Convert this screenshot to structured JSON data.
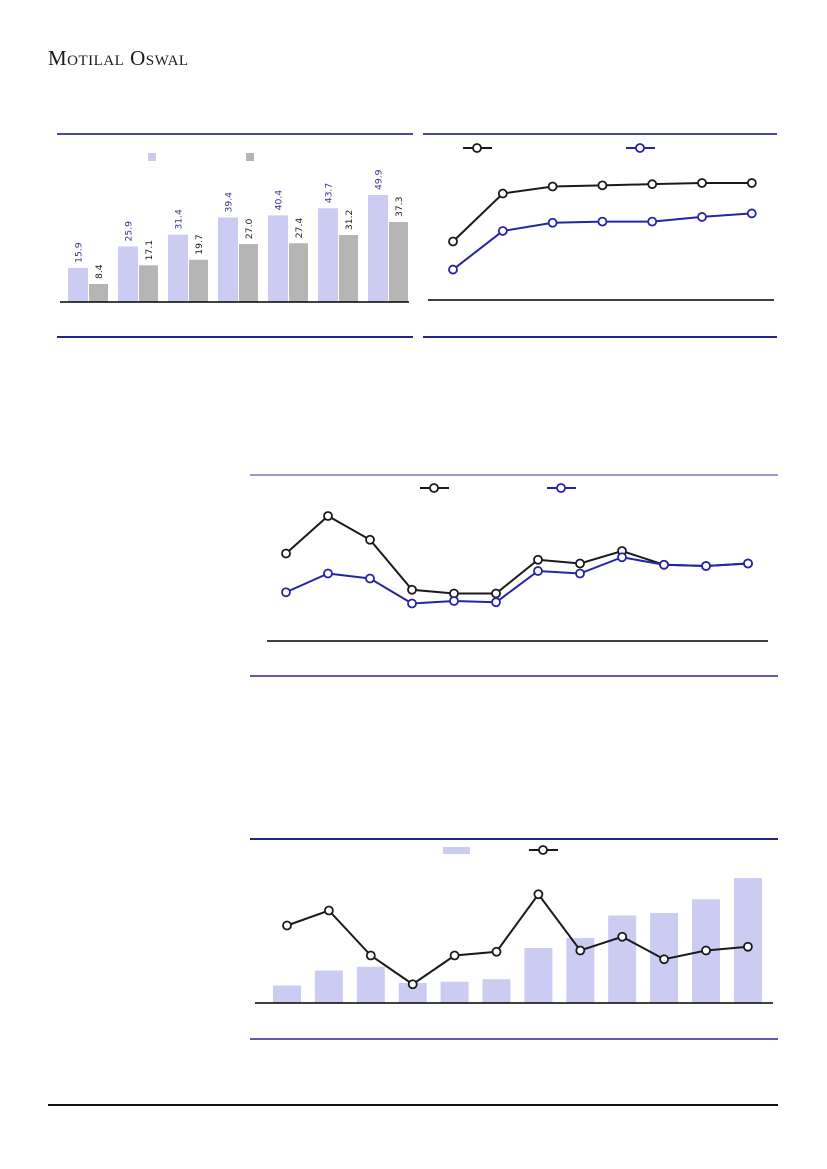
{
  "brand": {
    "logo_text": "Motilal Oswal"
  },
  "palette": {
    "lavender": "#ccccf2",
    "gray": "#b5b5b5",
    "black_line": "#1a1a1a",
    "navy_line": "#2424a8",
    "navy_label": "#333388",
    "block_border_navy": "#24248e",
    "block_border_periwinkle": "#9a9ad0"
  },
  "chart_data": [
    {
      "id": "paired-bar-chart",
      "type": "bar",
      "position": "top-left",
      "data_labels": "rotated-90",
      "legend_position": "top",
      "legend_swatches": [
        "#ccccf2",
        "#b5b5b5"
      ],
      "series": [
        {
          "name": "series-a",
          "color": "#ccccf2",
          "data_label_color": "#333388",
          "values": [
            15.9,
            25.9,
            31.4,
            39.4,
            40.4,
            43.7,
            49.9
          ]
        },
        {
          "name": "series-b",
          "color": "#b5b5b5",
          "data_label_color": "#1a1a1a",
          "values": [
            8.4,
            17.1,
            19.7,
            27.0,
            27.4,
            31.2,
            37.3
          ]
        }
      ]
    },
    {
      "id": "line-chart-top-right",
      "type": "line",
      "position": "top-right",
      "x": [
        1,
        2,
        3,
        4,
        5,
        6,
        7
      ],
      "value_scale": "relative (estimated from pixels, max=100)",
      "legend_position": "top",
      "legend_swatches": [
        "#1a1a1a",
        "#2424a8"
      ],
      "series": [
        {
          "name": "series-a",
          "color": "#1a1a1a",
          "marker": "open-circle",
          "values": [
            50,
            91,
            97,
            98,
            99,
            100,
            100
          ]
        },
        {
          "name": "series-b",
          "color": "#2424a8",
          "marker": "open-circle",
          "values": [
            26,
            59,
            66,
            67,
            67,
            71,
            74
          ]
        }
      ]
    },
    {
      "id": "line-chart-middle",
      "type": "line",
      "position": "middle-right",
      "x": [
        1,
        2,
        3,
        4,
        5,
        6,
        7,
        8,
        9,
        10,
        11,
        12
      ],
      "value_scale": "relative (estimated from pixels, max=100)",
      "legend_position": "top",
      "legend_swatches": [
        "#1a1a1a",
        "#2424a8"
      ],
      "series": [
        {
          "name": "series-a",
          "color": "#1a1a1a",
          "marker": "open-circle",
          "values": [
            70,
            100,
            81,
            41,
            38,
            38,
            65,
            62,
            72,
            61,
            60,
            62
          ]
        },
        {
          "name": "series-b",
          "color": "#2424a8",
          "marker": "open-circle",
          "values": [
            39,
            54,
            50,
            30,
            32,
            31,
            56,
            54,
            67,
            61,
            60,
            62
          ]
        }
      ]
    },
    {
      "id": "bar-line-chart-bottom",
      "type": "bar+line",
      "position": "bottom-right",
      "x": [
        1,
        2,
        3,
        4,
        5,
        6,
        7,
        8,
        9,
        10,
        11,
        12
      ],
      "value_scale": "relative (estimated from pixels, max=100)",
      "legend_position": "top",
      "legend_swatches": [
        "#ccccf2",
        "#1a1a1a"
      ],
      "series": [
        {
          "name": "bars",
          "kind": "bar",
          "color": "#ccccf2",
          "values": [
            14,
            26,
            29,
            16,
            17,
            19,
            44,
            52,
            70,
            72,
            83,
            100
          ]
        },
        {
          "name": "line",
          "kind": "line",
          "color": "#1a1a1a",
          "marker": "open-circle",
          "values": [
            62,
            74,
            38,
            15,
            38,
            41,
            87,
            42,
            53,
            35,
            42,
            45
          ]
        }
      ]
    }
  ]
}
